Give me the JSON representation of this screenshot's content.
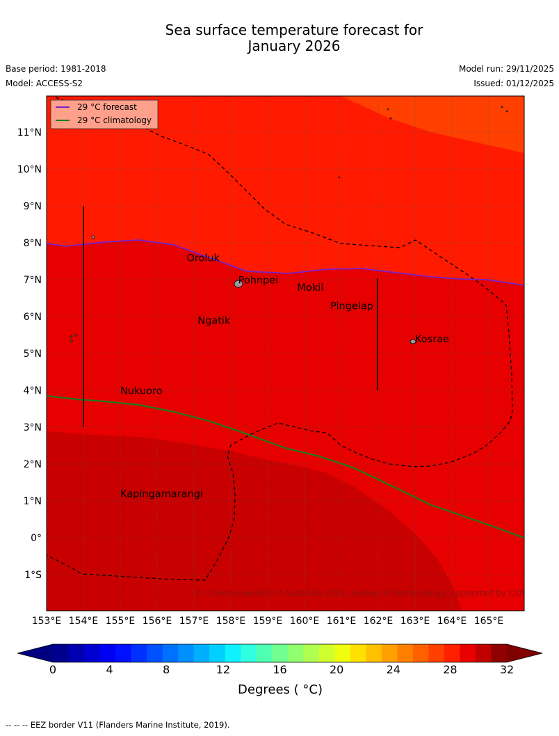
{
  "title_line1": "Sea surface temperature forecast for",
  "title_line2": "January 2026",
  "base_period": "Base period: 1981-2018",
  "model": "Model: ACCESS-S2",
  "model_run": "Model run: 29/11/2025",
  "issued": "Issued: 01/12/2025",
  "legend": {
    "forecast_label": "29 °C  forecast",
    "forecast_color": "#7722cc",
    "climatology_label": "29 °C  climatology",
    "climatology_color": "#1f7a1f"
  },
  "copyright": "© Commonwealth of Australia 2025, Bureau of Meteorology, supported by COSPPac",
  "places": [
    {
      "name": "Oroluk",
      "lon": 156.8,
      "lat": 7.5
    },
    {
      "name": "Pohnpei",
      "lon": 158.2,
      "lat": 6.9
    },
    {
      "name": "Mokil",
      "lon": 159.8,
      "lat": 6.7
    },
    {
      "name": "Pingelap",
      "lon": 160.7,
      "lat": 6.2
    },
    {
      "name": "Ngatik",
      "lon": 157.1,
      "lat": 5.8
    },
    {
      "name": "Kosrae",
      "lon": 163.0,
      "lat": 5.3
    },
    {
      "name": "Nukuoro",
      "lon": 155.0,
      "lat": 3.9
    },
    {
      "name": "Kapingamarangi",
      "lon": 155.0,
      "lat": 1.1
    }
  ],
  "axes": {
    "lon_ticks": [
      "153°E",
      "154°E",
      "155°E",
      "156°E",
      "157°E",
      "158°E",
      "159°E",
      "160°E",
      "161°E",
      "162°E",
      "163°E",
      "164°E",
      "165°E"
    ],
    "lat_ticks": [
      "11°N",
      "10°N",
      "9°N",
      "8°N",
      "7°N",
      "6°N",
      "5°N",
      "4°N",
      "3°N",
      "2°N",
      "1°N",
      "0°",
      "1°S"
    ]
  },
  "colorbar": {
    "ticks": [
      "0",
      "4",
      "8",
      "12",
      "16",
      "20",
      "24",
      "28",
      "32"
    ],
    "label": "Degrees ( °C)",
    "colors": [
      "#00008f",
      "#0000b0",
      "#0000d0",
      "#0000f0",
      "#0010ff",
      "#0030ff",
      "#0050ff",
      "#0070ff",
      "#0090ff",
      "#00b0ff",
      "#00d0ff",
      "#10f0ff",
      "#30ffe0",
      "#50ffb0",
      "#70ff90",
      "#90ff70",
      "#b0ff50",
      "#d0ff30",
      "#f0ff10",
      "#ffe000",
      "#ffc000",
      "#ffa000",
      "#ff8000",
      "#ff6000",
      "#ff4000",
      "#ff2000",
      "#e80000",
      "#c00000",
      "#8f0000"
    ],
    "min_color": "#000080",
    "max_color": "#800000"
  },
  "footer": "--  --  -- EEZ border V11 (Flanders Marine Institute, 2019)."
}
